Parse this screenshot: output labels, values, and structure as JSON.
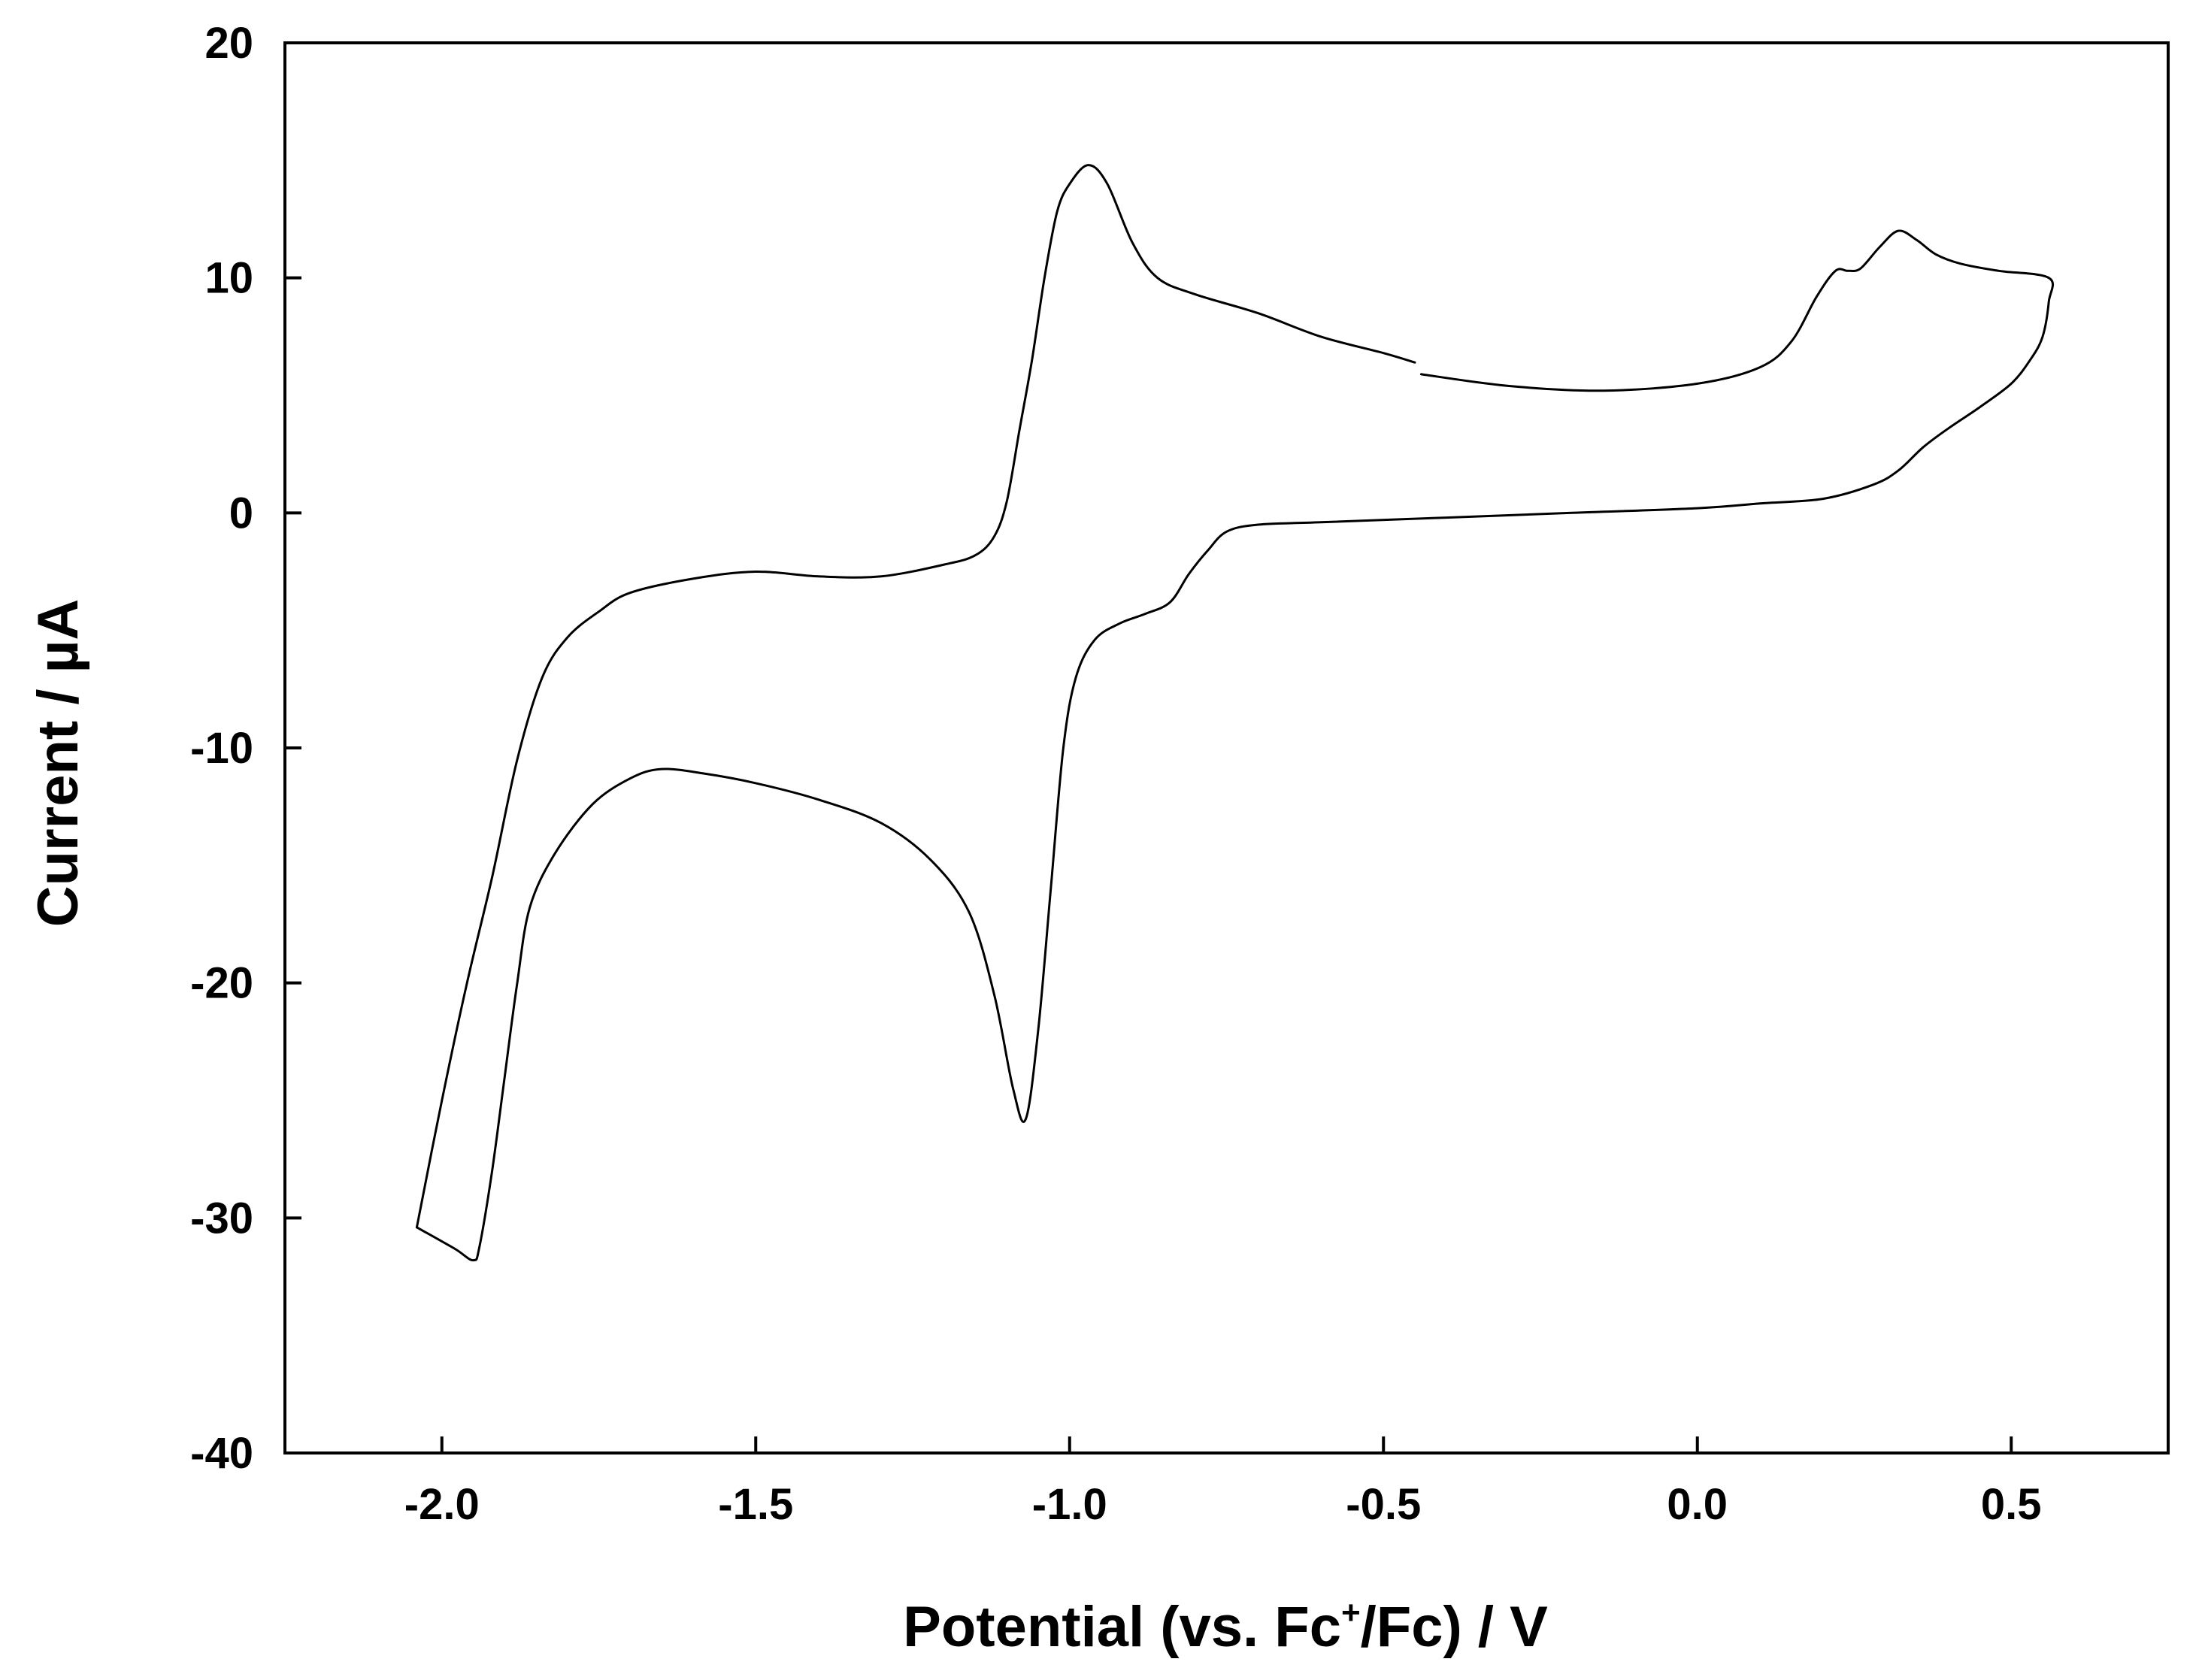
{
  "chart_data": {
    "type": "line",
    "title": "",
    "xlabel_parts": {
      "before": "Potential (vs. Fc",
      "sup": "+",
      "after": "/Fc) / V"
    },
    "ylabel": "Current / µA",
    "xlim": [
      -2.25,
      0.75
    ],
    "ylim": [
      -40,
      20
    ],
    "xticks": [
      {
        "value": -2.0,
        "label": "-2.0"
      },
      {
        "value": -1.5,
        "label": "-1.5"
      },
      {
        "value": -1.0,
        "label": "-1.0"
      },
      {
        "value": -0.5,
        "label": "-0.5"
      },
      {
        "value": 0.0,
        "label": "0.0"
      },
      {
        "value": 0.5,
        "label": "0.5"
      }
    ],
    "yticks": [
      {
        "value": 20,
        "label": "20"
      },
      {
        "value": 10,
        "label": "10"
      },
      {
        "value": 0,
        "label": "0"
      },
      {
        "value": -10,
        "label": "-10"
      },
      {
        "value": -20,
        "label": "-20"
      },
      {
        "value": -30,
        "label": "-30"
      },
      {
        "value": -40,
        "label": "-40"
      }
    ],
    "grid": false,
    "legend": "none",
    "line_color": "#000000",
    "series": [
      {
        "segment": "anodic-scan-start",
        "points": [
          [
            -2.04,
            -30.4
          ],
          [
            -2.0,
            -25.0
          ],
          [
            -1.96,
            -20.0
          ],
          [
            -1.92,
            -15.5
          ],
          [
            -1.88,
            -10.5
          ],
          [
            -1.84,
            -7.0
          ],
          [
            -1.8,
            -5.3
          ],
          [
            -1.75,
            -4.2
          ],
          [
            -1.7,
            -3.4
          ],
          [
            -1.6,
            -2.8
          ],
          [
            -1.5,
            -2.5
          ],
          [
            -1.4,
            -2.7
          ],
          [
            -1.3,
            -2.7
          ],
          [
            -1.2,
            -2.2
          ],
          [
            -1.15,
            -1.8
          ],
          [
            -1.12,
            -1.0
          ],
          [
            -1.1,
            0.5
          ],
          [
            -1.08,
            3.5
          ],
          [
            -1.06,
            6.5
          ],
          [
            -1.04,
            10.0
          ],
          [
            -1.02,
            12.8
          ],
          [
            -1.0,
            14.0
          ],
          [
            -0.97,
            14.8
          ],
          [
            -0.94,
            14.0
          ],
          [
            -0.9,
            11.5
          ],
          [
            -0.86,
            10.0
          ],
          [
            -0.8,
            9.3
          ],
          [
            -0.7,
            8.5
          ],
          [
            -0.6,
            7.5
          ],
          [
            -0.5,
            6.8
          ],
          [
            -0.45,
            6.4
          ]
        ]
      },
      {
        "segment": "anodic-scan-end-and-reverse",
        "points": [
          [
            -0.44,
            5.9
          ],
          [
            -0.3,
            5.4
          ],
          [
            -0.15,
            5.2
          ],
          [
            0.0,
            5.5
          ],
          [
            0.1,
            6.2
          ],
          [
            0.15,
            7.3
          ],
          [
            0.19,
            9.2
          ],
          [
            0.22,
            10.3
          ],
          [
            0.24,
            10.3
          ],
          [
            0.26,
            10.4
          ],
          [
            0.29,
            11.3
          ],
          [
            0.32,
            12.0
          ],
          [
            0.35,
            11.6
          ],
          [
            0.38,
            11.0
          ],
          [
            0.42,
            10.6
          ],
          [
            0.48,
            10.3
          ],
          [
            0.56,
            10.0
          ],
          [
            0.56,
            9.0
          ],
          [
            0.55,
            7.5
          ],
          [
            0.53,
            6.5
          ],
          [
            0.5,
            5.5
          ],
          [
            0.45,
            4.5
          ],
          [
            0.4,
            3.6
          ],
          [
            0.36,
            2.8
          ],
          [
            0.32,
            1.8
          ],
          [
            0.28,
            1.2
          ],
          [
            0.2,
            0.6
          ],
          [
            0.1,
            0.4
          ],
          [
            0.0,
            0.2
          ],
          [
            -0.2,
            0.0
          ],
          [
            -0.4,
            -0.2
          ],
          [
            -0.6,
            -0.4
          ],
          [
            -0.7,
            -0.5
          ],
          [
            -0.75,
            -0.8
          ],
          [
            -0.78,
            -1.6
          ],
          [
            -0.81,
            -2.6
          ],
          [
            -0.84,
            -3.8
          ],
          [
            -0.88,
            -4.3
          ],
          [
            -0.92,
            -4.7
          ],
          [
            -0.96,
            -5.4
          ],
          [
            -0.99,
            -7.0
          ],
          [
            -1.01,
            -10.0
          ],
          [
            -1.03,
            -16.0
          ],
          [
            -1.05,
            -22.0
          ],
          [
            -1.07,
            -25.8
          ],
          [
            -1.09,
            -24.5
          ],
          [
            -1.12,
            -20.5
          ],
          [
            -1.16,
            -17.0
          ],
          [
            -1.22,
            -14.8
          ],
          [
            -1.3,
            -13.2
          ],
          [
            -1.4,
            -12.2
          ],
          [
            -1.5,
            -11.5
          ],
          [
            -1.58,
            -11.1
          ],
          [
            -1.65,
            -10.9
          ],
          [
            -1.7,
            -11.3
          ],
          [
            -1.76,
            -12.4
          ],
          [
            -1.82,
            -14.5
          ],
          [
            -1.86,
            -16.8
          ],
          [
            -1.88,
            -20.0
          ],
          [
            -1.9,
            -24.0
          ],
          [
            -1.92,
            -28.0
          ],
          [
            -1.94,
            -31.2
          ],
          [
            -1.95,
            -31.8
          ],
          [
            -1.98,
            -31.3
          ],
          [
            -2.04,
            -30.4
          ]
        ]
      }
    ]
  }
}
